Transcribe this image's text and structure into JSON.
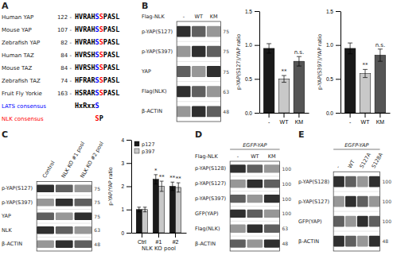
{
  "chart_data": [
    {
      "type": "alignment",
      "title": "A",
      "rows": [
        {
          "label": "Human YAP",
          "annotation": "122 -",
          "segments": [
            {
              "text": "HVRAH",
              "color": "black"
            },
            {
              "text": "S",
              "color": "blue"
            },
            {
              "text": "S",
              "color": "red"
            },
            {
              "text": "PASL",
              "color": "black"
            }
          ]
        },
        {
          "label": "Mouse YAP",
          "annotation": "107 -",
          "segments": [
            {
              "text": "HVRAH",
              "color": "black"
            },
            {
              "text": "S",
              "color": "blue"
            },
            {
              "text": "S",
              "color": "red"
            },
            {
              "text": "PASL",
              "color": "black"
            }
          ]
        },
        {
          "label": "Zebrafish YAP",
          "annotation": "82 -",
          "segments": [
            {
              "text": "HVRAH",
              "color": "black"
            },
            {
              "text": "S",
              "color": "blue"
            },
            {
              "text": "S",
              "color": "red"
            },
            {
              "text": "PASL",
              "color": "black"
            }
          ]
        },
        {
          "label": "Human TAZ",
          "annotation": "84 -",
          "segments": [
            {
              "text": "HVRSH",
              "color": "black"
            },
            {
              "text": "S",
              "color": "blue"
            },
            {
              "text": "S",
              "color": "red"
            },
            {
              "text": "PASL",
              "color": "black"
            }
          ]
        },
        {
          "label": "Mouse TAZ",
          "annotation": "84 -",
          "segments": [
            {
              "text": "HVRSH",
              "color": "black"
            },
            {
              "text": "S",
              "color": "blue"
            },
            {
              "text": "S",
              "color": "red"
            },
            {
              "text": "PASL",
              "color": "black"
            }
          ]
        },
        {
          "label": "Zebrafish TAZ",
          "annotation": "74 -",
          "segments": [
            {
              "text": "HFRAR",
              "color": "black"
            },
            {
              "text": "S",
              "color": "blue"
            },
            {
              "text": "S",
              "color": "red"
            },
            {
              "text": "PASL",
              "color": "black"
            }
          ]
        },
        {
          "label": "Fruit Fly Yorkie",
          "annotation": "163 -",
          "segments": [
            {
              "text": "HSRAR",
              "color": "black"
            },
            {
              "text": "S",
              "color": "blue"
            },
            {
              "text": "S",
              "color": "red"
            },
            {
              "text": "PASL",
              "color": "black"
            }
          ]
        },
        {
          "label": "LATS consensus",
          "color": "blue",
          "segments": [
            {
              "text": "HxRxx",
              "color": "black"
            },
            {
              "text": "S",
              "color": "blue"
            }
          ]
        },
        {
          "label": "NLK consensus",
          "color": "red",
          "segments": [
            {
              "text": "S",
              "color": "red"
            },
            {
              "text": "P",
              "color": "black"
            }
          ]
        }
      ]
    },
    {
      "type": "blot",
      "title": "B",
      "row_header": "Flag-NLK",
      "categories": [
        "-",
        "WT",
        "KM"
      ],
      "rows": [
        "p-YAP(S127)",
        "p-YAP(S397)",
        "YAP",
        "Flag(NLK)",
        "β-ACTIN"
      ],
      "markers": [
        75,
        75,
        75,
        63,
        48
      ]
    },
    {
      "type": "bar",
      "categories": [
        "-",
        "WT",
        "KM"
      ],
      "values": [
        0.95,
        0.5,
        0.76
      ],
      "errors": [
        0.07,
        0.05,
        0.07
      ],
      "colors": [
        "#1a1a1a",
        "#c8c8c8",
        "#555555"
      ],
      "ylabel": "p-YAP(S127)/YAP ratio",
      "ylim": [
        0.0,
        1.5
      ],
      "yticks": [
        {
          "value": 0,
          "label": "0.0"
        },
        0.5,
        {
          "value": 1,
          "label": "1.0"
        },
        1.5
      ],
      "annotations": [
        null,
        "**",
        "n.s."
      ]
    },
    {
      "type": "bar",
      "categories": [
        "-",
        "WT",
        "KM"
      ],
      "values": [
        0.95,
        0.58,
        0.85
      ],
      "errors": [
        0.08,
        0.06,
        0.09
      ],
      "colors": [
        "#1a1a1a",
        "#c8c8c8",
        "#555555"
      ],
      "ylabel": "p-YAP(S397)/YAP ratio",
      "ylim": [
        0.0,
        1.5
      ],
      "yticks": [
        {
          "value": 0,
          "label": "0.0"
        },
        0.5,
        {
          "value": 1,
          "label": "1.0"
        },
        1.5
      ],
      "annotations": [
        null,
        "**",
        "n.s."
      ]
    },
    {
      "type": "blot",
      "title": "C",
      "categories": [
        "Control",
        "NLK KO #1 pool",
        "NLK KO #2 pool"
      ],
      "rows": [
        "p-YAP(S127)",
        "p-YAP(S397)",
        "YAP",
        "NLK",
        "β-ACTIN"
      ],
      "markers": [
        75,
        75,
        75,
        63,
        48
      ]
    },
    {
      "type": "bar",
      "categories": [
        "Ctrl",
        "#1",
        "#2"
      ],
      "xlabel": "NLK KO pool",
      "ylabel": "p-YAP/YAP ratio",
      "ylim": [
        0,
        4
      ],
      "yticks": [
        0,
        1,
        2,
        3,
        4
      ],
      "legend": "upper left",
      "series": [
        {
          "name": "p127",
          "color": "#1a1a1a",
          "values": [
            1.0,
            2.3,
            2.0
          ],
          "errors": [
            0.1,
            0.2,
            0.18
          ],
          "annotations": [
            null,
            "*",
            "**"
          ]
        },
        {
          "name": "p397",
          "color": "#c8c8c8",
          "values": [
            1.0,
            2.0,
            1.95
          ],
          "errors": [
            0.1,
            0.22,
            0.2
          ],
          "annotations": [
            null,
            "**",
            "**"
          ]
        }
      ]
    },
    {
      "type": "blot",
      "title": "D",
      "header": "EGFP-YAP",
      "row_header": "Flag-NLK",
      "categories": [
        "-",
        "WT",
        "KM"
      ],
      "rows": [
        "p-YAP(S128)",
        "p-YAP(S127)",
        "p-YAP(S397)",
        "GFP(YAP)",
        "Flag(NLK)",
        "β-ACTIN"
      ],
      "markers": [
        100,
        100,
        100,
        100,
        63,
        48
      ]
    },
    {
      "type": "blot",
      "title": "E",
      "header": "EGFP-YAP",
      "categories": [
        "-",
        "WT",
        "S127A",
        "S128A"
      ],
      "rows": [
        "p-YAP(S128)",
        "p-YAP(S127)",
        "GFP(YAP)",
        "β-ACTIN"
      ],
      "markers": [
        100,
        100,
        100,
        48
      ]
    }
  ]
}
